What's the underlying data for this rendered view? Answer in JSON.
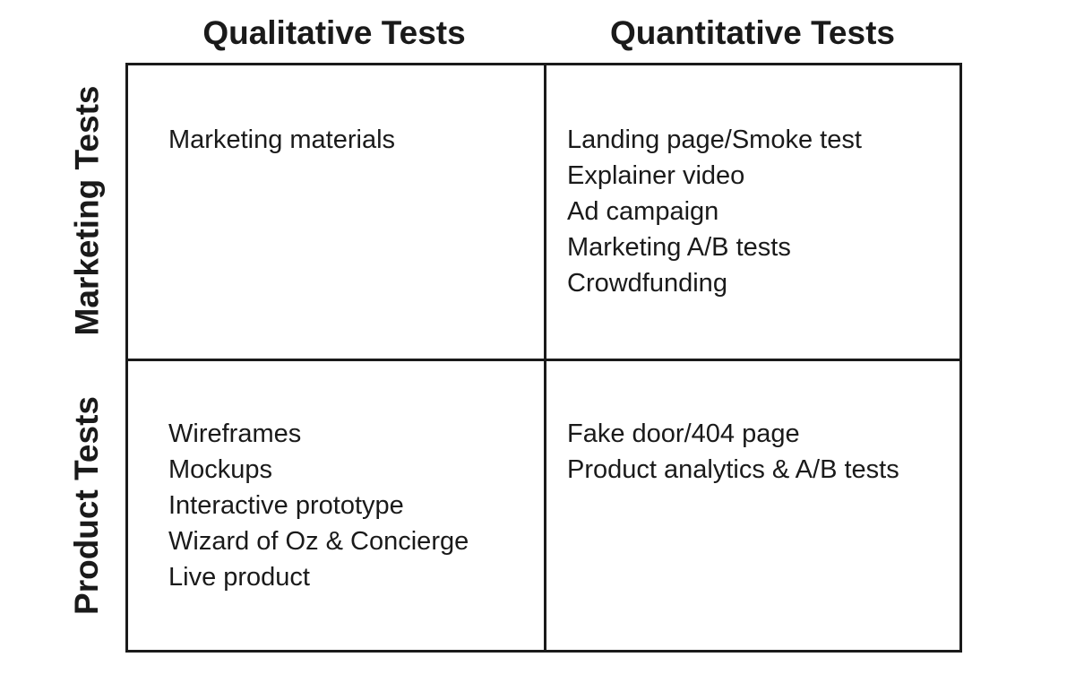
{
  "columns": {
    "qualitative": "Qualitative Tests",
    "quantitative": "Quantitative Tests"
  },
  "rows": {
    "marketing": "Marketing Tests",
    "product": "Product Tests"
  },
  "cells": {
    "marketing_qualitative": [
      "Marketing materials"
    ],
    "marketing_quantitative": [
      "Landing page/Smoke test",
      "Explainer video",
      "Ad campaign",
      "Marketing A/B tests",
      "Crowdfunding"
    ],
    "product_qualitative": [
      "Wireframes",
      "Mockups",
      "Interactive prototype",
      "Wizard of Oz & Concierge",
      "Live product"
    ],
    "product_quantitative": [
      "Fake door/404 page",
      "Product analytics & A/B tests"
    ]
  }
}
